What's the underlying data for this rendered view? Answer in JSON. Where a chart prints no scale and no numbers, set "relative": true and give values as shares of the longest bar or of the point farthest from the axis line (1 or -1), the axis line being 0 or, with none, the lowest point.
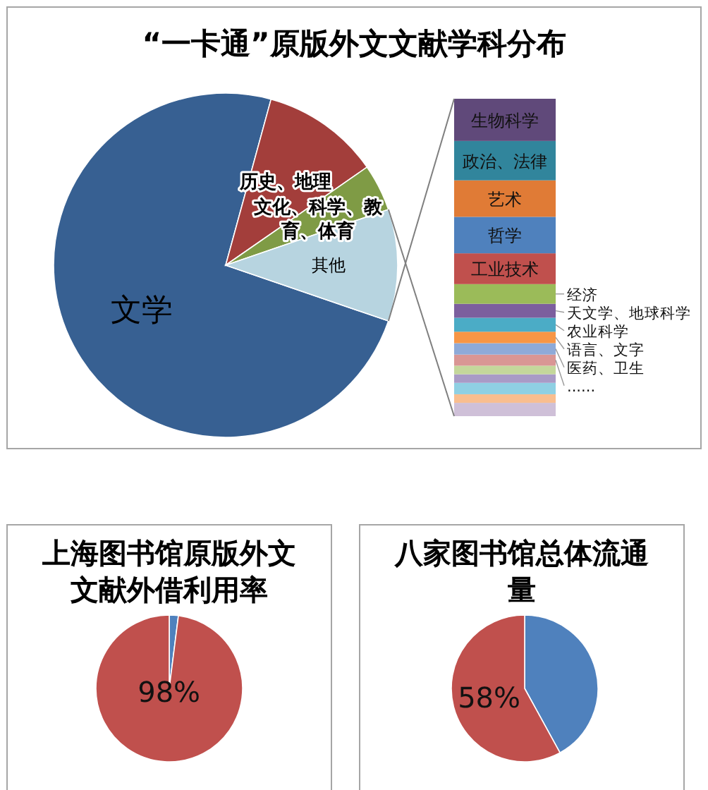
{
  "chart_data": [
    {
      "type": "pie",
      "title": "“一卡通”原版外文文献学科分布",
      "categories": [
        "文学",
        "历史、地理",
        "文化、科学、教育、体育",
        "其他"
      ],
      "values": [
        74.0,
        11.1,
        4.4,
        10.5
      ],
      "colors": [
        "#376092",
        "#a33e3b",
        "#7f9b45",
        "#b7d4e0"
      ]
    },
    {
      "type": "bar",
      "stacked": true,
      "relative": true,
      "categories": [
        null
      ],
      "series": [
        {
          "color": "#cfc0d8",
          "values": [
            0.042
          ]
        },
        {
          "color": "#f9be8f",
          "values": [
            0.027
          ]
        },
        {
          "color": "#8fd0e3",
          "values": [
            0.036
          ]
        },
        {
          "color": "#a99bc6",
          "values": [
            0.027
          ]
        },
        {
          "color": "#c4d79b",
          "values": [
            0.027
          ]
        },
        {
          "name": "......",
          "color": "#d99694",
          "values": [
            0.035
          ]
        },
        {
          "name": "医药、卫生",
          "color": "#8eaad8",
          "values": [
            0.036
          ]
        },
        {
          "name": "语言、文字",
          "color": "#f79646",
          "values": [
            0.036
          ]
        },
        {
          "name": "农业科学",
          "color": "#4bacc6",
          "values": [
            0.044
          ]
        },
        {
          "name": "天文学、地球科学",
          "color": "#7c5f9e",
          "values": [
            0.044
          ]
        },
        {
          "name": "经济",
          "color": "#9bbb59",
          "values": [
            0.062
          ]
        },
        {
          "name": "工业技术",
          "color": "#c0504d",
          "values": [
            0.097
          ]
        },
        {
          "name": "哲学",
          "color": "#4f81bd",
          "values": [
            0.115
          ]
        },
        {
          "name": "艺术",
          "color": "#e07b36",
          "values": [
            0.115
          ]
        },
        {
          "name": "政治、法律",
          "color": "#31859c",
          "values": [
            0.124
          ]
        },
        {
          "name": "生物科学",
          "color": "#60497a",
          "values": [
            0.133
          ]
        }
      ]
    },
    {
      "type": "pie",
      "title": "上海图书馆原版外文文献外借利用率",
      "categories": [
        null,
        null
      ],
      "values": [
        2,
        98
      ],
      "colors": [
        "#4f81bd",
        "#c0504d"
      ],
      "value_labels": [
        null,
        "98%"
      ]
    },
    {
      "type": "pie",
      "title": "八家图书馆总体流通量",
      "categories": [
        null,
        null
      ],
      "values": [
        42,
        58
      ],
      "colors": [
        "#4f81bd",
        "#c0504d"
      ],
      "value_labels": [
        null,
        "58%"
      ]
    }
  ]
}
